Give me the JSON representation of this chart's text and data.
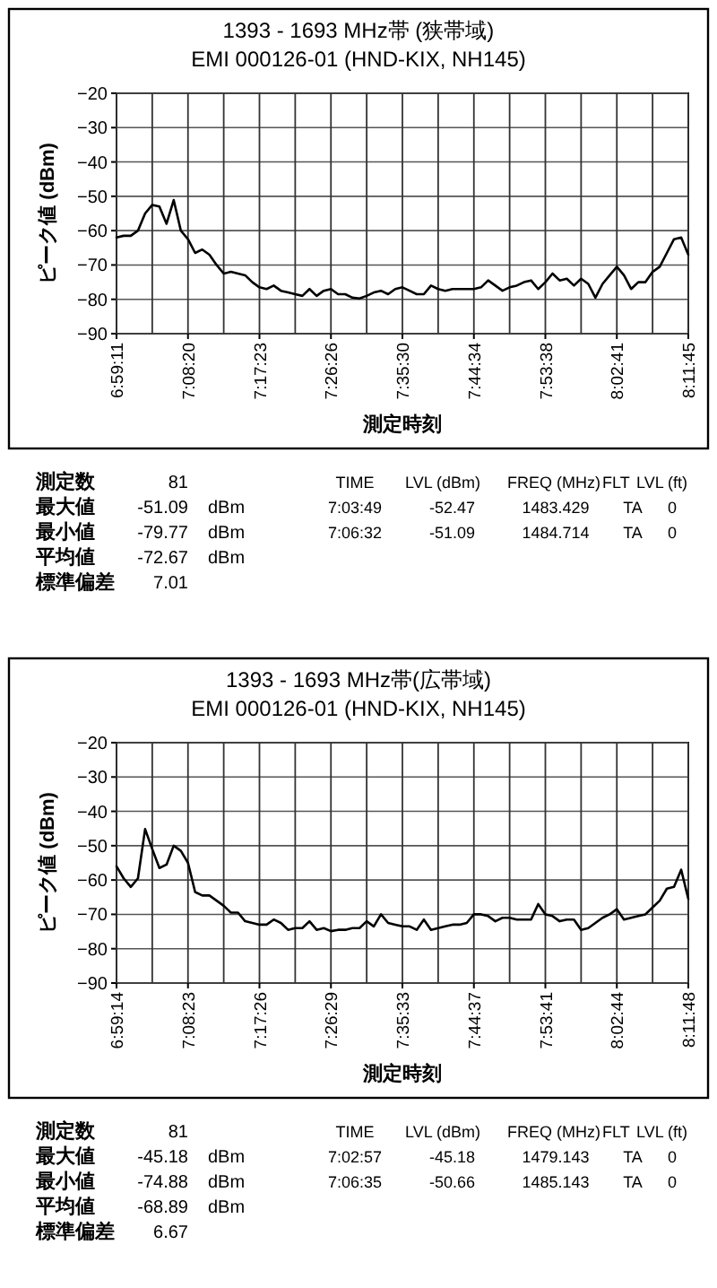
{
  "chart_data": [
    {
      "type": "line",
      "title": "1393 - 1693 MHz帯 (狭帯域)",
      "subtitle": "EMI 000126-01 (HND-KIX, NH145)",
      "xlabel": "測定時刻",
      "ylabel": "ピーク値 (dBm)",
      "categories": [
        "6:59:11",
        null,
        null,
        null,
        null,
        null,
        null,
        null,
        null,
        null,
        "7:08:20",
        null,
        null,
        null,
        null,
        null,
        null,
        null,
        null,
        null,
        "7:17:23",
        null,
        null,
        null,
        null,
        null,
        null,
        null,
        null,
        null,
        "7:26:26",
        null,
        null,
        null,
        null,
        null,
        null,
        null,
        null,
        null,
        "7:35:30",
        null,
        null,
        null,
        null,
        null,
        null,
        null,
        null,
        null,
        "7:44:34",
        null,
        null,
        null,
        null,
        null,
        null,
        null,
        null,
        null,
        "7:53:38",
        null,
        null,
        null,
        null,
        null,
        null,
        null,
        null,
        null,
        "8:02:41",
        null,
        null,
        null,
        null,
        null,
        null,
        null,
        null,
        null,
        "8:11:45"
      ],
      "series": [
        {
          "color": "#000000",
          "values": [
            -62,
            -61.5,
            -61.5,
            -60,
            -55,
            -52.5,
            -53,
            -58,
            -51.09,
            -60,
            -62.5,
            -66.5,
            -65.5,
            -67,
            -70,
            -72.5,
            -72,
            -72.5,
            -73,
            -75,
            -76.5,
            -77,
            -76,
            -77.5,
            -78,
            -78.5,
            -79,
            -77,
            -79,
            -77.5,
            -77,
            -78.5,
            -78.5,
            -79.5,
            -79.77,
            -79,
            -78,
            -77.5,
            -78.5,
            -77,
            -76.5,
            -77.5,
            -78.5,
            -78.5,
            -76,
            -77,
            -77.5,
            -77,
            -77,
            -77,
            -77,
            -76.5,
            -74.5,
            -76,
            -77.5,
            -76.5,
            -76,
            -75,
            -74.5,
            -77,
            -75,
            -72.5,
            -74.5,
            -74,
            -76,
            -74,
            -75.5,
            -79.5,
            -75.5,
            -73,
            -70.5,
            -73,
            -77,
            -75,
            -75,
            -72,
            -70.5,
            -66.5,
            -62.5,
            -62,
            -67
          ]
        }
      ],
      "ylim": [
        -90,
        -20
      ],
      "yticks": [
        -90,
        -80,
        -70,
        -60,
        -50,
        -40,
        -30,
        -20
      ],
      "grid": true,
      "marker": "none",
      "line_style": "solid",
      "annotations": [
        "測定数",
        "81",
        "TIME",
        "LVL (dBm)",
        "FREQ (MHz)",
        "FLT",
        "LVL (ft)",
        "最大値",
        "-51.09",
        "dBm",
        "7:03:49",
        "-52.47",
        "1483.429",
        "TA",
        "0",
        "最小値",
        "-79.77",
        "dBm",
        "7:06:32",
        "-51.09",
        "1484.714",
        "TA",
        "0",
        "平均値",
        "-72.67",
        "dBm",
        "標準偏差",
        "7.01"
      ]
    },
    {
      "type": "line",
      "title": "1393 - 1693 MHz帯(広帯域)",
      "subtitle": "EMI 000126-01 (HND-KIX, NH145)",
      "xlabel": "測定時刻",
      "ylabel": "ピーク値 (dBm)",
      "categories": [
        "6:59:14",
        null,
        null,
        null,
        null,
        null,
        null,
        null,
        null,
        null,
        "7:08:23",
        null,
        null,
        null,
        null,
        null,
        null,
        null,
        null,
        null,
        "7:17:26",
        null,
        null,
        null,
        null,
        null,
        null,
        null,
        null,
        null,
        "7:26:29",
        null,
        null,
        null,
        null,
        null,
        null,
        null,
        null,
        null,
        "7:35:33",
        null,
        null,
        null,
        null,
        null,
        null,
        null,
        null,
        null,
        "7:44:37",
        null,
        null,
        null,
        null,
        null,
        null,
        null,
        null,
        null,
        "7:53:41",
        null,
        null,
        null,
        null,
        null,
        null,
        null,
        null,
        null,
        "8:02:44",
        null,
        null,
        null,
        null,
        null,
        null,
        null,
        null,
        null,
        "8:11:48"
      ],
      "series": [
        {
          "color": "#000000",
          "values": [
            -56,
            -59.5,
            -62,
            -59.5,
            -45.18,
            -51,
            -56.5,
            -55.5,
            -50,
            -51.5,
            -55,
            -63.5,
            -64.5,
            -64.5,
            -66,
            -67.5,
            -69.5,
            -69.5,
            -72,
            -72.5,
            -73,
            -73,
            -71.5,
            -72.5,
            -74.5,
            -74,
            -74,
            -72,
            -74.5,
            -74,
            -74.88,
            -74.5,
            -74.5,
            -74,
            -74,
            -72,
            -73.5,
            -70,
            -72.5,
            -73,
            -73.5,
            -73.5,
            -74.5,
            -71.5,
            -74.5,
            -74,
            -73.5,
            -73,
            -73,
            -72.5,
            -70,
            -70,
            -70.5,
            -72,
            -71,
            -71,
            -71.5,
            -71.5,
            -71.5,
            -67,
            -70,
            -70.5,
            -72,
            -71.5,
            -71.5,
            -74.5,
            -74,
            -72.5,
            -71,
            -70,
            -68.5,
            -71.5,
            -71,
            -70.5,
            -70,
            -68,
            -66,
            -62.5,
            -62,
            -57,
            -65.5
          ]
        }
      ],
      "ylim": [
        -90,
        -20
      ],
      "yticks": [
        -90,
        -80,
        -70,
        -60,
        -50,
        -40,
        -30,
        -20
      ],
      "grid": true,
      "marker": "none",
      "line_style": "solid",
      "annotations": [
        "測定数",
        "81",
        "TIME",
        "LVL (dBm)",
        "FREQ (MHz)",
        "FLT",
        "LVL (ft)",
        "最大値",
        "-45.18",
        "dBm",
        "7:02:57",
        "-45.18",
        "1479.143",
        "TA",
        "0",
        "最小値",
        "-74.88",
        "dBm",
        "7:06:35",
        "-50.66",
        "1485.143",
        "TA",
        "0",
        "平均値",
        "-68.89",
        "dBm",
        "標準偏差",
        "6.67"
      ]
    }
  ]
}
